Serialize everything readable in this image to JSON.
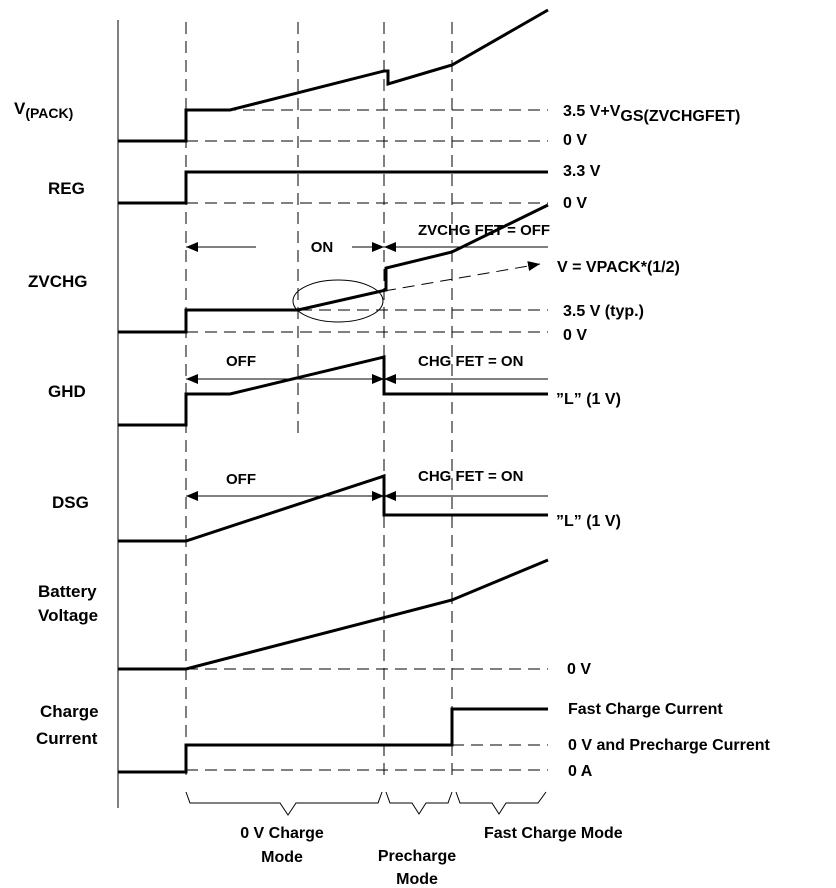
{
  "signals": {
    "vpack_main": "V",
    "vpack_sub": "(PACK)",
    "reg": "REG",
    "zvchg": "ZVCHG",
    "ghd": "GHD",
    "dsg": "DSG",
    "battery_line1": "Battery",
    "battery_line2": "Voltage",
    "charge_line1": "Charge",
    "charge_line2": "Current"
  },
  "right_labels": {
    "vpack_level_main": "3.5 V+V",
    "vpack_level_sub": "GS(ZVCHGFET)",
    "vpack_zero": "0 V",
    "reg_level": "3.3 V",
    "reg_zero": "0 V",
    "zvchg_half": "V = VPACK*(1/2)",
    "zvchg_typ": "3.5 V (typ.)",
    "zvchg_zero": "0 V",
    "ghd_low": "”L” (1 V)",
    "dsg_low": "”L” (1 V)",
    "battery_zero": "0 V",
    "fast_current": "Fast Charge Current",
    "precharge_current": "0 V and Precharge Current",
    "zero_amp": "0 A"
  },
  "annotations": {
    "zvchg_on": "ON",
    "zvchg_fet_off": "ZVCHG FET = OFF",
    "ghd_off": "OFF",
    "ghd_chg_on": "CHG FET = ON",
    "dsg_off": "OFF",
    "dsg_chg_on": "CHG FET = ON"
  },
  "modes": {
    "zero_v_line1": "0 V Charge",
    "zero_v_line2": "Mode",
    "precharge_line1": "Precharge",
    "precharge_line2": "Mode",
    "fast": "Fast Charge Mode"
  }
}
